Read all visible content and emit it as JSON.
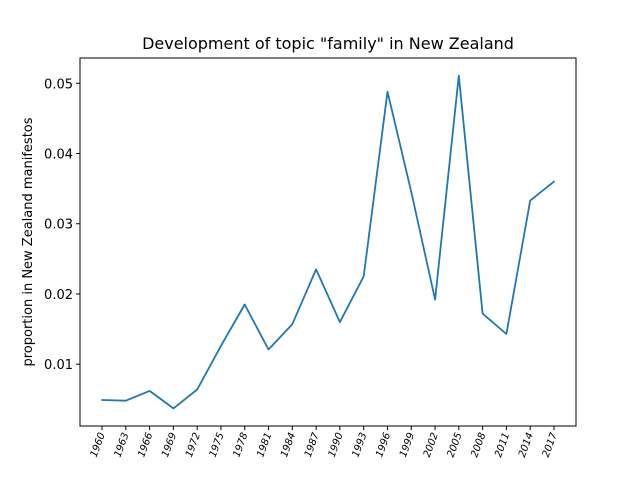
{
  "chart_data": {
    "type": "line",
    "title": "Development of topic \"family\" in New Zealand",
    "xlabel": "",
    "ylabel": "proportion in New Zealand manifestos",
    "categories": [
      "1960",
      "1963",
      "1966",
      "1969",
      "1972",
      "1975",
      "1978",
      "1981",
      "1984",
      "1987",
      "1990",
      "1993",
      "1996",
      "1999",
      "2002",
      "2005",
      "2008",
      "2011",
      "2014",
      "2017"
    ],
    "series": [
      {
        "name": "family",
        "color": "#1f77b4",
        "values": [
          0.0049,
          0.0048,
          0.0062,
          0.0037,
          0.0064,
          0.0126,
          0.0185,
          0.0121,
          0.0157,
          0.0235,
          0.016,
          0.0225,
          0.0488,
          0.0345,
          0.0192,
          0.0511,
          0.0172,
          0.0143,
          0.0333,
          0.036
        ]
      }
    ],
    "ylim": [
      0.0012,
      0.0536
    ],
    "yticks": [
      0.01,
      0.02,
      0.03,
      0.04,
      0.05
    ],
    "ytick_labels": [
      "0.01",
      "0.02",
      "0.03",
      "0.04",
      "0.05"
    ]
  }
}
